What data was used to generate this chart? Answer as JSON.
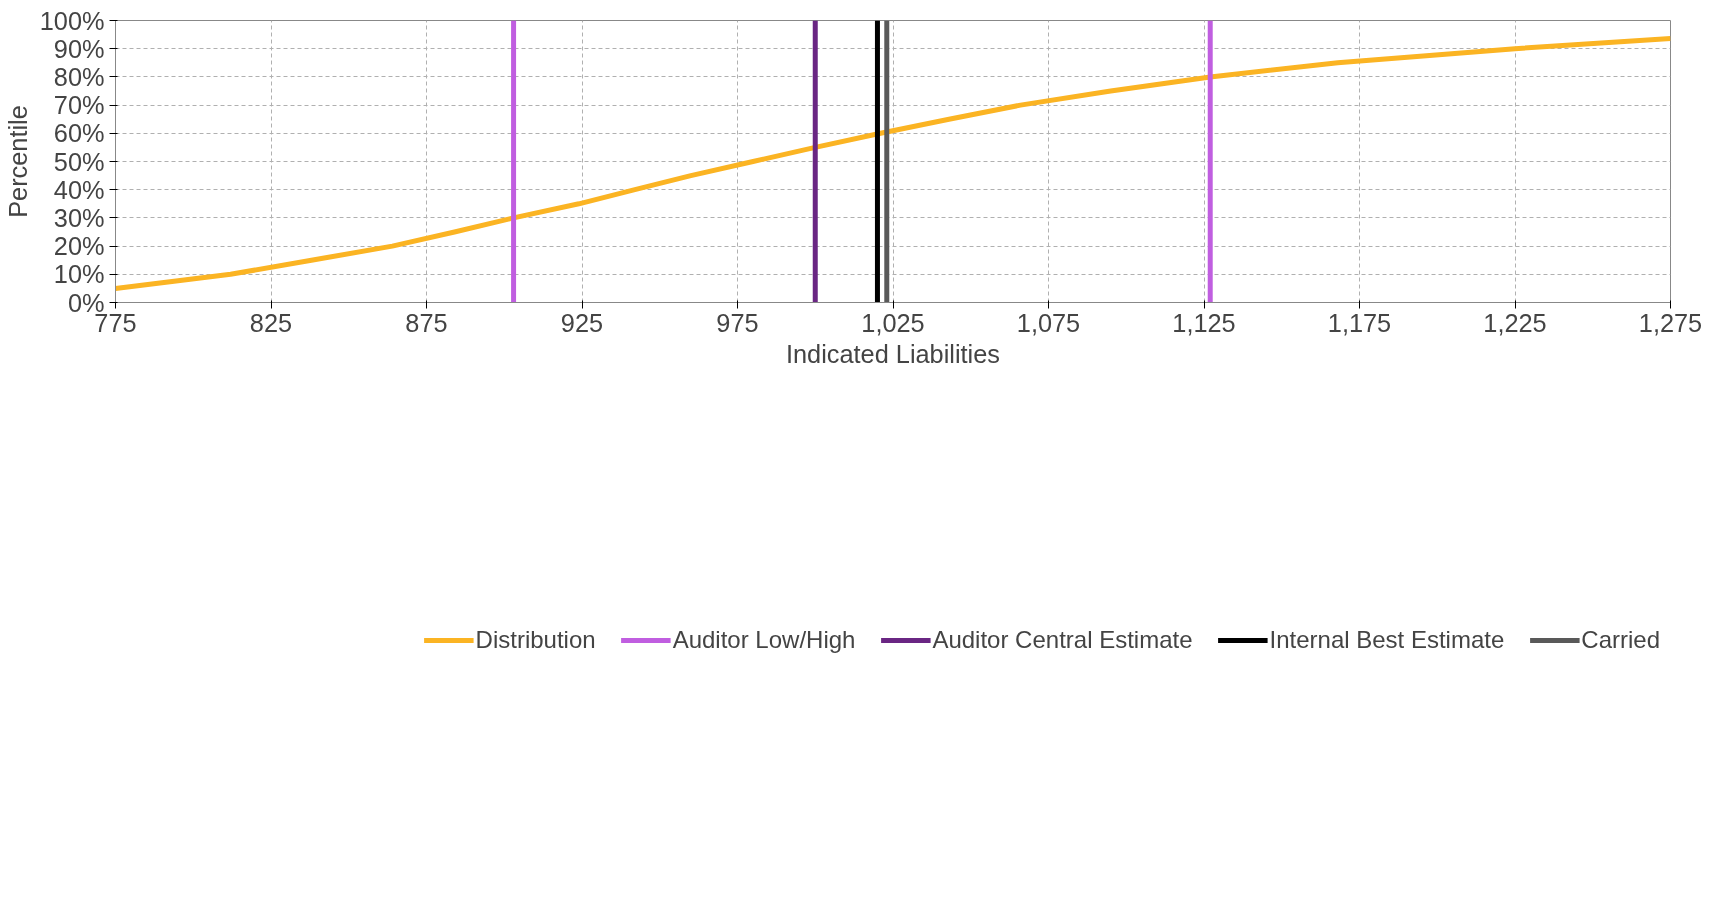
{
  "chart_data": {
    "type": "line",
    "xlabel": "Indicated Liabilities",
    "ylabel": "Percentile",
    "xlim": [
      775,
      1275
    ],
    "xticks": [
      775,
      825,
      875,
      925,
      975,
      {
        "value": 1025,
        "label": "1,025"
      },
      {
        "value": 1075,
        "label": "1,075"
      },
      {
        "value": 1125,
        "label": "1,125"
      },
      {
        "value": 1175,
        "label": "1,175"
      },
      {
        "value": 1225,
        "label": "1,225"
      },
      {
        "value": 1275,
        "label": "1,275"
      }
    ],
    "ylim": [
      0,
      100
    ],
    "yticks": [
      {
        "value": 0,
        "label": "0%"
      },
      {
        "value": 10,
        "label": "10%"
      },
      {
        "value": 20,
        "label": "20%"
      },
      {
        "value": 30,
        "label": "30%"
      },
      {
        "value": 40,
        "label": "40%"
      },
      {
        "value": 50,
        "label": "50%"
      },
      {
        "value": 60,
        "label": "60%"
      },
      {
        "value": 70,
        "label": "70%"
      },
      {
        "value": 80,
        "label": "80%"
      },
      {
        "value": 90,
        "label": "90%"
      },
      {
        "value": 100,
        "label": "100%"
      }
    ],
    "grid": true,
    "legend": "bottom",
    "line_style": "solid",
    "marker": "none",
    "series": [
      {
        "name": "Distribution",
        "color": "#fbb423",
        "x": [
          775,
          812,
          838,
          864,
          884,
          903,
          924,
          942,
          960,
          980,
          1000,
          1021,
          1043,
          1066,
          1095,
          1127,
          1168,
          1225,
          1275
        ],
        "values": [
          5,
          10,
          15,
          20,
          25,
          30,
          35,
          40,
          45,
          50,
          55,
          60,
          65,
          70,
          75,
          80,
          85,
          90,
          93.6
        ]
      },
      {
        "name": "Auditor Low/High",
        "color": "#c05ee0",
        "x": [
          903,
          903,
          null,
          1127,
          1127
        ],
        "values": [
          0,
          100,
          null,
          0,
          100
        ]
      },
      {
        "name": "Auditor Central Estimate",
        "color": "#6a2683",
        "x": [
          1000,
          1000
        ],
        "values": [
          0,
          100
        ]
      },
      {
        "name": "Internal Best Estimate",
        "color": "#000000",
        "x": [
          1020,
          1020
        ],
        "values": [
          0,
          100
        ]
      },
      {
        "name": "Carried",
        "color": "#595959",
        "x": [
          1023,
          1023
        ],
        "values": [
          0,
          100
        ]
      }
    ]
  }
}
